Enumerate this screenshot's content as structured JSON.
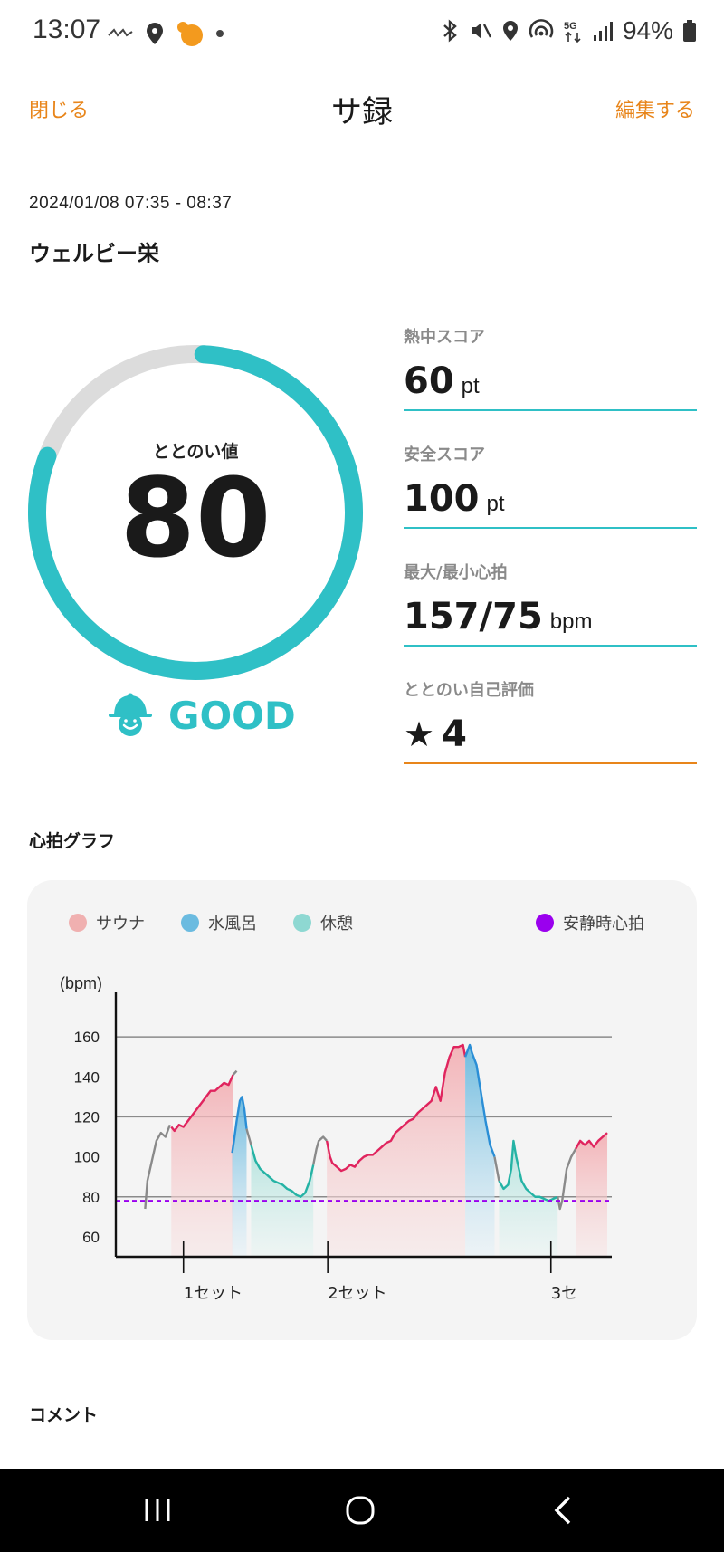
{
  "status_bar": {
    "time": "13:07",
    "battery": "94%",
    "icons_left": [
      "carrier-logo-icon",
      "location-pin-icon",
      "app-badge-icon",
      "dot-icon"
    ],
    "icons_right": [
      "bluetooth-icon",
      "mute-icon",
      "location-icon",
      "hotspot-icon",
      "5g-icon",
      "signal-icon",
      "battery-icon"
    ]
  },
  "header": {
    "close_label": "閉じる",
    "title": "サ録",
    "edit_label": "編集する"
  },
  "session": {
    "date_range": "2024/01/08 07:35 - 08:37",
    "facility": "ウェルビー栄"
  },
  "gauge": {
    "label": "ととのい値",
    "value": "80",
    "fraction": 0.8,
    "rating": "GOOD",
    "color": "#2fc0c6",
    "track_color": "#dcdcdc"
  },
  "scores": [
    {
      "label": "熱中スコア",
      "value": "60",
      "unit": "pt"
    },
    {
      "label": "安全スコア",
      "value": "100",
      "unit": "pt"
    },
    {
      "label": "最大/最小心拍",
      "value": "157/75",
      "unit": "bpm"
    },
    {
      "label": "ととのい自己評価",
      "value": "4",
      "icon": "star-icon"
    }
  ],
  "graph": {
    "section_title": "心拍グラフ",
    "legend": [
      {
        "label": "サウナ",
        "color": "#f0b0b0"
      },
      {
        "label": "水風呂",
        "color": "#6bbbe0"
      },
      {
        "label": "休憩",
        "color": "#8ed8d2"
      },
      {
        "label": "安静時心拍",
        "color": "#9a00ee"
      }
    ]
  },
  "chart_data": {
    "type": "line",
    "ylabel": "(bpm)",
    "ylim": [
      50,
      175
    ],
    "yticks": [
      60,
      80,
      100,
      120,
      140,
      160
    ],
    "grid": "horizontal",
    "resting_hr": 78,
    "x_labels": [
      "1セット",
      "2セット",
      "3セ"
    ],
    "x_label_positions": [
      15,
      47,
      96.5
    ],
    "xlim": [
      0,
      100
    ],
    "segments": [
      {
        "type": "none",
        "points": [
          [
            6.5,
            74
          ],
          [
            7,
            88
          ],
          [
            8,
            98
          ],
          [
            9,
            108
          ],
          [
            10,
            112
          ],
          [
            11,
            110
          ],
          [
            12,
            116
          ]
        ]
      },
      {
        "type": "sauna",
        "points": [
          [
            12.3,
            115
          ],
          [
            13,
            113
          ],
          [
            14,
            116
          ],
          [
            15,
            115
          ],
          [
            16,
            118
          ],
          [
            17,
            121
          ],
          [
            18,
            124
          ],
          [
            19,
            127
          ],
          [
            20,
            130
          ],
          [
            21,
            133
          ],
          [
            22,
            133
          ],
          [
            23,
            135
          ],
          [
            24,
            137
          ],
          [
            25,
            136
          ],
          [
            26,
            141
          ]
        ]
      },
      {
        "type": "none",
        "points": [
          [
            26,
            141
          ],
          [
            26.8,
            143
          ]
        ]
      },
      {
        "type": "water",
        "points": [
          [
            25.8,
            102
          ],
          [
            26.2,
            108
          ],
          [
            26.8,
            118
          ],
          [
            27.5,
            128
          ],
          [
            28,
            130
          ],
          [
            28.5,
            124
          ],
          [
            29,
            114
          ]
        ]
      },
      {
        "type": "none",
        "points": [
          [
            29,
            114
          ],
          [
            30,
            106
          ]
        ]
      },
      {
        "type": "rest",
        "points": [
          [
            30,
            106
          ],
          [
            31,
            98
          ],
          [
            32,
            94
          ],
          [
            33,
            92
          ],
          [
            34,
            90
          ],
          [
            35,
            88
          ],
          [
            36,
            87
          ],
          [
            37,
            86
          ],
          [
            38,
            84
          ],
          [
            39,
            83
          ],
          [
            40,
            81
          ],
          [
            41,
            80
          ],
          [
            42,
            82
          ],
          [
            43,
            88
          ],
          [
            43.8,
            96
          ]
        ]
      },
      {
        "type": "none",
        "points": [
          [
            43.8,
            96
          ],
          [
            44.5,
            104
          ],
          [
            45,
            108
          ],
          [
            46,
            110
          ],
          [
            46.8,
            108
          ]
        ]
      },
      {
        "type": "sauna",
        "points": [
          [
            46.8,
            108
          ],
          [
            47.5,
            100
          ],
          [
            48,
            97
          ],
          [
            49,
            95
          ],
          [
            50,
            93
          ],
          [
            51,
            94
          ],
          [
            52,
            96
          ],
          [
            53,
            95
          ],
          [
            54,
            98
          ],
          [
            55,
            100
          ],
          [
            56,
            101
          ],
          [
            57,
            101
          ],
          [
            58,
            103
          ],
          [
            59,
            105
          ],
          [
            60,
            107
          ],
          [
            61,
            108
          ],
          [
            62,
            112
          ],
          [
            63,
            114
          ],
          [
            64,
            116
          ],
          [
            65,
            118
          ],
          [
            66,
            119
          ],
          [
            67,
            122
          ],
          [
            68,
            124
          ],
          [
            69,
            126
          ],
          [
            70,
            128
          ],
          [
            71,
            135
          ],
          [
            72,
            128
          ],
          [
            73,
            142
          ],
          [
            74,
            150
          ],
          [
            75,
            155
          ],
          [
            76,
            155
          ],
          [
            77,
            156
          ],
          [
            77.5,
            150
          ]
        ]
      },
      {
        "type": "water",
        "points": [
          [
            77.5,
            150
          ],
          [
            78.5,
            156
          ],
          [
            79,
            152
          ],
          [
            80,
            146
          ],
          [
            81,
            132
          ],
          [
            82,
            118
          ],
          [
            83,
            106
          ],
          [
            84,
            100
          ]
        ]
      },
      {
        "type": "none",
        "points": [
          [
            84,
            100
          ],
          [
            84.5,
            94
          ],
          [
            85,
            88
          ]
        ]
      },
      {
        "type": "rest",
        "points": [
          [
            85,
            88
          ],
          [
            86,
            84
          ],
          [
            87,
            86
          ],
          [
            87.7,
            94
          ],
          [
            88.2,
            108
          ],
          [
            88.8,
            100
          ],
          [
            90,
            88
          ],
          [
            91,
            84
          ],
          [
            92,
            82
          ],
          [
            93,
            80
          ],
          [
            94,
            80
          ],
          [
            95,
            79
          ],
          [
            96,
            78
          ],
          [
            97,
            79
          ],
          [
            98,
            80
          ]
        ]
      },
      {
        "type": "none",
        "points": [
          [
            98,
            80
          ],
          [
            98.5,
            74
          ],
          [
            99,
            78
          ],
          [
            99.5,
            86
          ],
          [
            100,
            94
          ],
          [
            101,
            100
          ],
          [
            102,
            104
          ]
        ]
      },
      {
        "type": "sauna",
        "points": [
          [
            102,
            104
          ],
          [
            103,
            108
          ],
          [
            104,
            106
          ],
          [
            105,
            108
          ],
          [
            106,
            105
          ],
          [
            107,
            108
          ],
          [
            108,
            110
          ],
          [
            109,
            112
          ]
        ]
      }
    ]
  }
}
